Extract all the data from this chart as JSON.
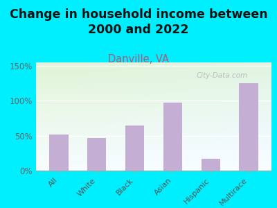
{
  "title": "Change in household income between\n2000 and 2022",
  "subtitle": "Danville, VA",
  "categories": [
    "All",
    "White",
    "Black",
    "Asian",
    "Hispanic",
    "Multirace"
  ],
  "values": [
    52,
    47,
    65,
    97,
    17,
    125
  ],
  "bar_color": "#c4aed4",
  "title_fontsize": 12.5,
  "subtitle_fontsize": 10.5,
  "subtitle_color": "#b05878",
  "background_outer": "#00efff",
  "yticks": [
    0,
    50,
    100,
    150
  ],
  "ytick_labels": [
    "0%",
    "50%",
    "100%",
    "150%"
  ],
  "ylim": [
    0,
    155
  ],
  "watermark": "City-Data.com"
}
